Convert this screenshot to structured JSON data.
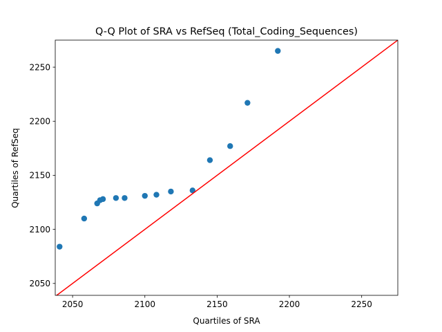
{
  "chart_data": {
    "type": "scatter",
    "title": "Q-Q Plot of SRA vs RefSeq (Total_Coding_Sequences)",
    "xlabel": "Quartiles of SRA",
    "ylabel": "Quartiles of RefSeq",
    "xlim": [
      2038,
      2275
    ],
    "ylim": [
      2039,
      2275
    ],
    "xticks": [
      "2050",
      "2100",
      "2150",
      "2200",
      "2250"
    ],
    "yticks": [
      "2050",
      "2100",
      "2150",
      "2200",
      "2250"
    ],
    "grid": false,
    "points": [
      {
        "x": 2041,
        "y": 2084
      },
      {
        "x": 2058,
        "y": 2110
      },
      {
        "x": 2067,
        "y": 2124
      },
      {
        "x": 2069,
        "y": 2127
      },
      {
        "x": 2071,
        "y": 2128
      },
      {
        "x": 2080,
        "y": 2129
      },
      {
        "x": 2086,
        "y": 2129
      },
      {
        "x": 2100,
        "y": 2131
      },
      {
        "x": 2108,
        "y": 2132
      },
      {
        "x": 2118,
        "y": 2135
      },
      {
        "x": 2133,
        "y": 2136
      },
      {
        "x": 2145,
        "y": 2164
      },
      {
        "x": 2159,
        "y": 2177
      },
      {
        "x": 2171,
        "y": 2217
      },
      {
        "x": 2192,
        "y": 2265
      }
    ],
    "reference_line": {
      "type": "y=x"
    },
    "colors": {
      "points": "#1f77b4",
      "reference_line": "#ff0000"
    }
  }
}
